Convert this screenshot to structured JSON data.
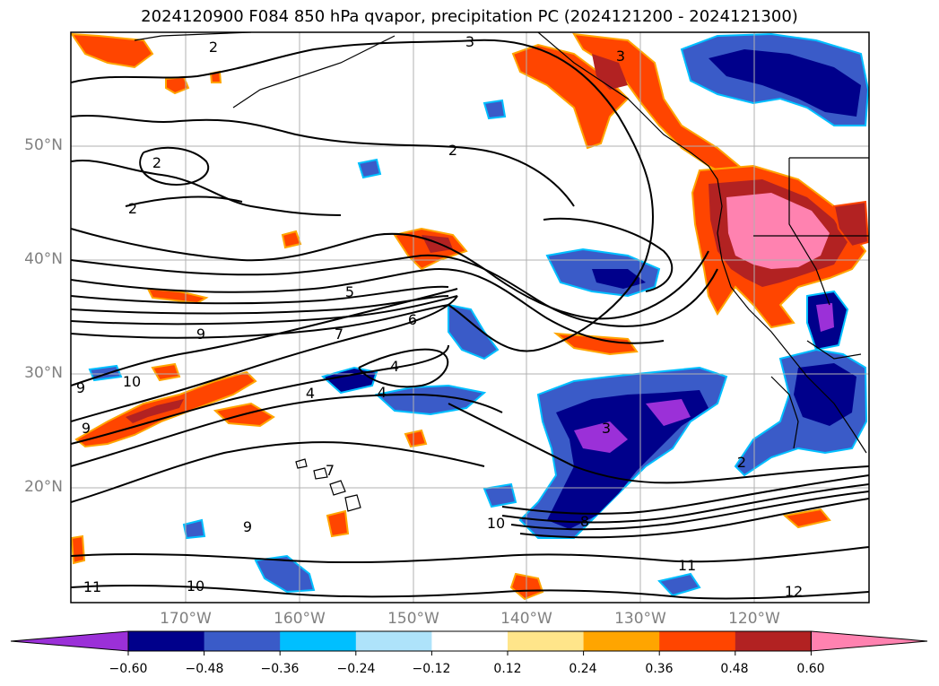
{
  "title": "2024120900 F084 850 hPa qvapor, precipitation PC (2024121200 - 2024121300)",
  "latitude_labels": [
    "50°N",
    "40°N",
    "30°N",
    "20°N"
  ],
  "longitude_labels": [
    "170°W",
    "160°W",
    "150°W",
    "140°W",
    "130°W",
    "120°W"
  ],
  "contour_labels": [
    "3",
    "3",
    "2",
    "2",
    "2",
    "2",
    "5",
    "6",
    "7",
    "9",
    "4",
    "4",
    "4",
    "10",
    "9",
    "9",
    "9",
    "7",
    "10",
    "8",
    "3",
    "2",
    "11",
    "10",
    "11",
    "12"
  ],
  "colorbar": {
    "ticks": [
      "−0.60",
      "−0.48",
      "−0.36",
      "−0.24",
      "−0.12",
      "0.12",
      "0.24",
      "0.36",
      "0.48",
      "0.60"
    ],
    "colors": [
      "#9b30d8",
      "#00008b",
      "#3a5bc8",
      "#00bfff",
      "#aee3fa",
      "#ffffff",
      "#ffe58a",
      "#ffa500",
      "#ff4500",
      "#b22222",
      "#ff82b0"
    ],
    "extend": "both"
  },
  "colors": {
    "coast": "#000000",
    "contour": "#000000",
    "grid": "#b0b0b0",
    "tick_text": "#808080"
  }
}
